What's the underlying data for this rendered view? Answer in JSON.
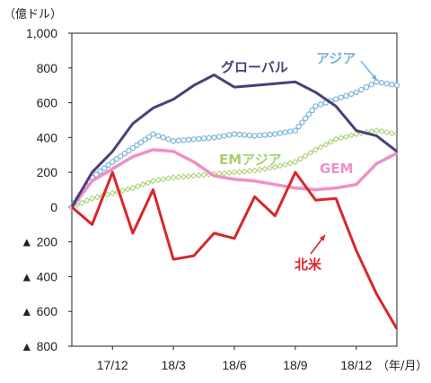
{
  "chart_data": {
    "type": "line",
    "ylabel": "（億ドル）",
    "xlabel": "（年/月）",
    "ylim": [
      -800,
      1000
    ],
    "grid": false,
    "x": [
      "17/10",
      "17/11",
      "17/12",
      "18/1",
      "18/2",
      "18/3",
      "18/4",
      "18/5",
      "18/6",
      "18/7",
      "18/8",
      "18/9",
      "18/10",
      "18/11",
      "18/12",
      "19/1",
      "19/2"
    ],
    "x_ticks": [
      "17/12",
      "18/3",
      "18/6",
      "18/9",
      "18/12"
    ],
    "y_ticks": [
      {
        "value": 1000,
        "label": "1,000"
      },
      {
        "value": 800,
        "label": "800"
      },
      {
        "value": 600,
        "label": "600"
      },
      {
        "value": 400,
        "label": "400"
      },
      {
        "value": 200,
        "label": "200"
      },
      {
        "value": 0,
        "label": "0"
      },
      {
        "value": -200,
        "label": "▲ 200"
      },
      {
        "value": -400,
        "label": "▲ 400"
      },
      {
        "value": -600,
        "label": "▲ 600"
      },
      {
        "value": -800,
        "label": "▲ 800"
      }
    ],
    "series": [
      {
        "name": "グローバル",
        "color": "#4a3f7a",
        "marker": "none",
        "values": [
          0,
          200,
          320,
          480,
          570,
          620,
          700,
          760,
          690,
          700,
          710,
          720,
          660,
          580,
          440,
          410,
          320
        ]
      },
      {
        "name": "アジア",
        "color": "#7ab3d9",
        "marker": "circle",
        "values": [
          0,
          170,
          260,
          340,
          420,
          380,
          390,
          400,
          420,
          410,
          420,
          440,
          580,
          620,
          660,
          720,
          700
        ]
      },
      {
        "name": "EMアジア",
        "color": "#a8d06f",
        "marker": "diamond",
        "values": [
          0,
          50,
          80,
          110,
          150,
          170,
          180,
          190,
          200,
          210,
          230,
          260,
          330,
          390,
          420,
          440,
          420
        ]
      },
      {
        "name": "GEM",
        "color": "#ef8fc6",
        "marker": "none",
        "values": [
          0,
          150,
          220,
          290,
          330,
          320,
          260,
          180,
          160,
          150,
          130,
          110,
          100,
          110,
          130,
          250,
          310
        ]
      },
      {
        "name": "北米",
        "color": "#d9262a",
        "marker": "none",
        "values": [
          0,
          -100,
          200,
          -150,
          100,
          -300,
          -280,
          -150,
          -180,
          60,
          -50,
          200,
          40,
          50,
          -250,
          -500,
          -700
        ]
      }
    ]
  }
}
